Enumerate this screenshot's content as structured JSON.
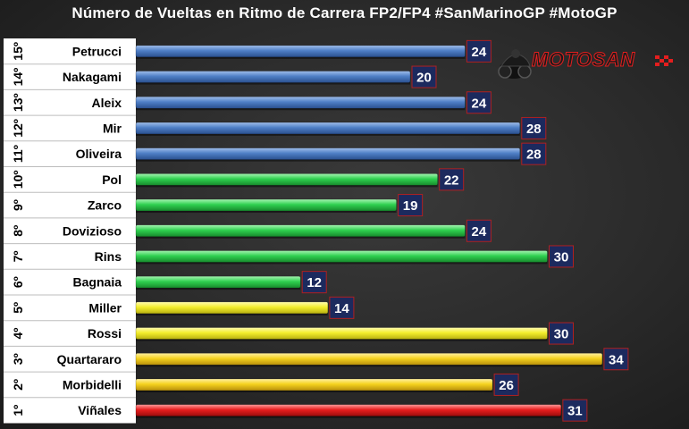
{
  "chart_data": {
    "type": "bar",
    "orientation": "horizontal",
    "title": "Número de Vueltas en Ritmo de Carrera FP2/FP4 #SanMarinoGP #MotoGP",
    "ranks": [
      "15º",
      "14º",
      "13º",
      "12º",
      "11º",
      "10º",
      "9º",
      "8º",
      "7º",
      "6º",
      "5º",
      "4º",
      "3º",
      "2º",
      "1º"
    ],
    "categories": [
      "Petrucci",
      "Nakagami",
      "Aleix",
      "Mir",
      "Oliveira",
      "Pol",
      "Zarco",
      "Dovizioso",
      "Rins",
      "Bagnaia",
      "Miller",
      "Rossi",
      "Quartararo",
      "Morbidelli",
      "Viñales"
    ],
    "values": [
      24,
      20,
      24,
      28,
      28,
      22,
      19,
      24,
      30,
      12,
      14,
      30,
      34,
      26,
      31
    ],
    "bar_colors": [
      "#4a78c0",
      "#4a78c0",
      "#4a78c0",
      "#4a78c0",
      "#4a78c0",
      "#2fcf4f",
      "#2fcf4f",
      "#2fcf4f",
      "#2fcf4f",
      "#2fcf4f",
      "#f5f032",
      "#f5f032",
      "#f5d21e",
      "#f5d21e",
      "#e81e1e"
    ],
    "xlim": [
      0,
      34
    ],
    "grid": false,
    "legend": "none"
  },
  "logo": {
    "text": "MOTOSAN"
  },
  "colors": {
    "background": "#2c2c2c",
    "label_panel": "#ffffff",
    "value_box": "#1c2a5e",
    "value_box_border": "#b02020"
  }
}
